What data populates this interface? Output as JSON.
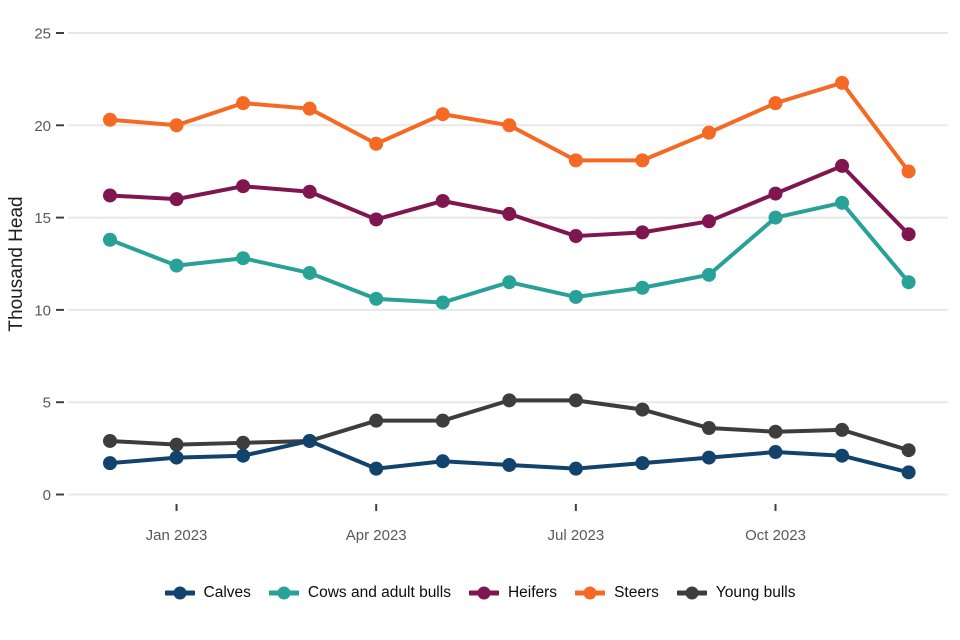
{
  "chart_data": {
    "type": "line",
    "title": "",
    "ylabel": "Thousand Head",
    "xlabel": "",
    "ylim": [
      0,
      25
    ],
    "yticks": [
      0,
      5,
      10,
      15,
      20,
      25
    ],
    "grid": "horizontal-gridlines-only",
    "legend_position": "bottom-center",
    "x": [
      "Dec 2022",
      "Jan 2023",
      "Feb 2023",
      "Mar 2023",
      "Apr 2023",
      "May 2023",
      "Jun 2023",
      "Jul 2023",
      "Aug 2023",
      "Sep 2023",
      "Oct 2023",
      "Nov 2023",
      "Dec 2023"
    ],
    "xticks": [
      {
        "index": 1,
        "label": "Jan 2023"
      },
      {
        "index": 4,
        "label": "Apr 2023"
      },
      {
        "index": 7,
        "label": "Jul 2023"
      },
      {
        "index": 10,
        "label": "Oct 2023"
      }
    ],
    "series": [
      {
        "name": "Calves",
        "color": "#12436D",
        "values": [
          1.7,
          2.0,
          2.1,
          2.9,
          1.4,
          1.8,
          1.6,
          1.4,
          1.7,
          2.0,
          2.3,
          2.1,
          1.2
        ]
      },
      {
        "name": "Cows and adult bulls",
        "color": "#28A197",
        "values": [
          13.8,
          12.4,
          12.8,
          12.0,
          10.6,
          10.4,
          11.5,
          10.7,
          11.2,
          11.9,
          15.0,
          15.8,
          11.5
        ]
      },
      {
        "name": "Heifers",
        "color": "#801650",
        "values": [
          16.2,
          16.0,
          16.7,
          16.4,
          14.9,
          15.9,
          15.2,
          14.0,
          14.2,
          14.8,
          16.3,
          17.8,
          14.1
        ]
      },
      {
        "name": "Steers",
        "color": "#F46A25",
        "values": [
          20.3,
          20.0,
          21.2,
          20.9,
          19.0,
          20.6,
          20.0,
          18.1,
          18.1,
          19.6,
          21.2,
          22.3,
          17.5
        ]
      },
      {
        "name": "Young bulls",
        "color": "#3D3D3D",
        "values": [
          2.9,
          2.7,
          2.8,
          2.9,
          4.0,
          4.0,
          5.1,
          5.1,
          4.6,
          3.6,
          3.4,
          3.5,
          2.4
        ]
      }
    ],
    "style": {
      "gridline_color": "#E8E8E8",
      "tick_color": "#404040",
      "tick_label_color": "#595959",
      "axis_title_color": "#1F1F1F",
      "background": "#FFFFFF"
    }
  }
}
